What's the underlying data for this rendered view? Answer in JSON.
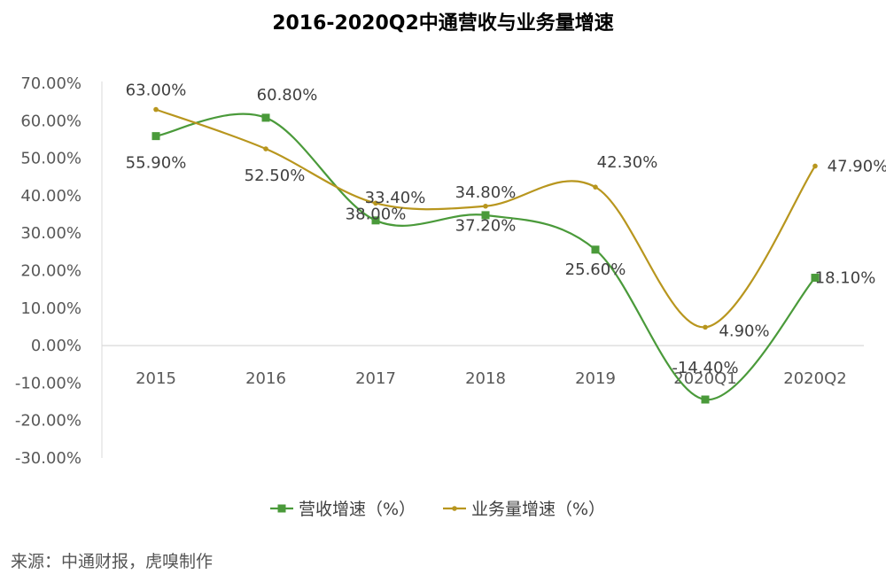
{
  "chart_data": {
    "type": "line",
    "title": "2016-2020Q2中通营收与业务量增速",
    "categories": [
      "2015",
      "2016",
      "2017",
      "2018",
      "2019",
      "2020Q1",
      "2020Q2"
    ],
    "y_ticks": [
      "70.00%",
      "60.00%",
      "50.00%",
      "40.00%",
      "30.00%",
      "20.00%",
      "10.00%",
      "0.00%",
      "-10.00%",
      "-20.00%",
      "-30.00%"
    ],
    "ylim": [
      -30,
      70
    ],
    "grid": false,
    "legend_position": "bottom",
    "series": [
      {
        "name": "营收增速（%）",
        "color": "#4a9a3a",
        "marker": "square",
        "values": [
          55.9,
          60.8,
          33.4,
          34.8,
          25.6,
          -14.4,
          18.1
        ],
        "labels": [
          "55.90%",
          "60.80%",
          "33.40%",
          "34.80%",
          "25.60%",
          "-14.40%",
          "18.10%"
        ]
      },
      {
        "name": "业务量增速（%）",
        "color": "#b8961e",
        "marker": "dot",
        "values": [
          63.0,
          52.5,
          38.0,
          37.2,
          42.3,
          4.9,
          47.9
        ],
        "labels": [
          "63.00%",
          "52.50%",
          "38.00%",
          "37.20%",
          "42.30%",
          "4.90%",
          "47.90%"
        ]
      }
    ]
  },
  "footer": {
    "source": "来源：中通财报，虎嗅制作"
  }
}
